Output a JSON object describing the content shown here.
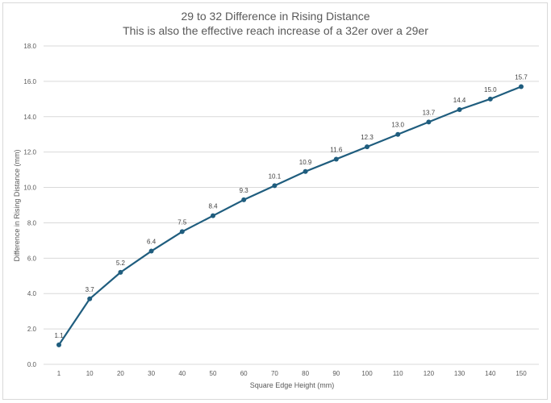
{
  "chart_data": {
    "type": "line",
    "title": "29 to 32 Difference in Rising Distance",
    "subtitle": "This is also the effective reach increase of a 32er over a 29er",
    "xlabel": "Square Edge Height (mm)",
    "ylabel": "Difference in Rising Distance (mm)",
    "categories": [
      "1",
      "10",
      "20",
      "30",
      "40",
      "50",
      "60",
      "70",
      "80",
      "90",
      "100",
      "110",
      "120",
      "130",
      "140",
      "150"
    ],
    "values": [
      1.1,
      3.7,
      5.2,
      6.4,
      7.5,
      8.4,
      9.3,
      10.1,
      10.9,
      11.6,
      12.3,
      13.0,
      13.7,
      14.4,
      15.0,
      15.7
    ],
    "data_labels": [
      "1.1",
      "3.7",
      "5.2",
      "6.4",
      "7.5",
      "8.4",
      "9.3",
      "10.1",
      "10.9",
      "11.6",
      "12.3",
      "13.0",
      "13.7",
      "14.4",
      "15.0",
      "15.7"
    ],
    "ylim": [
      0,
      18
    ],
    "yticks": [
      "0.0",
      "2.0",
      "4.0",
      "6.0",
      "8.0",
      "10.0",
      "12.0",
      "14.0",
      "16.0",
      "18.0"
    ],
    "grid": true,
    "legend": "none",
    "series_color": "#1f5d7e",
    "grid_color": "#d9d9d9"
  }
}
